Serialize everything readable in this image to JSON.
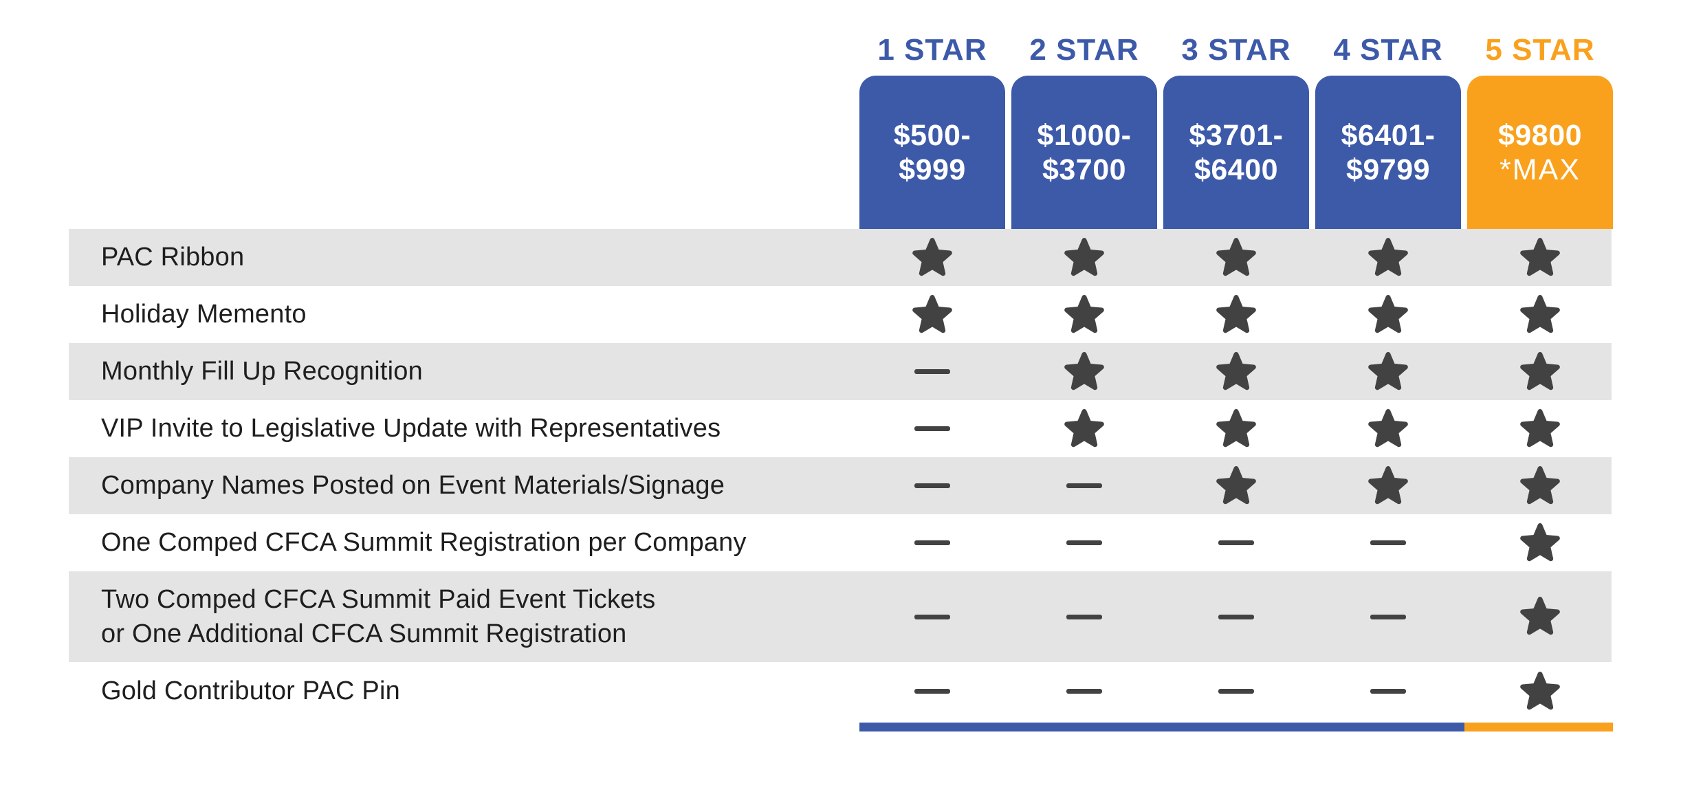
{
  "chart_data": {
    "type": "table",
    "title": "PAC contribution star-tier benefits comparison",
    "columns": [
      {
        "label": "1 STAR",
        "price_line1": "$500-",
        "price_line2": "$999",
        "theme": "blue"
      },
      {
        "label": "2 STAR",
        "price_line1": "$1000-",
        "price_line2": "$3700",
        "theme": "blue"
      },
      {
        "label": "3 STAR",
        "price_line1": "$3701-",
        "price_line2": "$6400",
        "theme": "blue"
      },
      {
        "label": "4 STAR",
        "price_line1": "$6401-",
        "price_line2": "$9799",
        "theme": "blue"
      },
      {
        "label": "5 STAR",
        "price_line1": "$9800",
        "price_line2": "*MAX",
        "theme": "orange"
      }
    ],
    "rows": [
      {
        "label": "PAC Ribbon",
        "cells": [
          "star",
          "star",
          "star",
          "star",
          "star"
        ]
      },
      {
        "label": "Holiday Memento",
        "cells": [
          "star",
          "star",
          "star",
          "star",
          "star"
        ]
      },
      {
        "label": "Monthly Fill Up Recognition",
        "cells": [
          "dash",
          "star",
          "star",
          "star",
          "star"
        ]
      },
      {
        "label": "VIP Invite to Legislative Update with Representatives",
        "cells": [
          "dash",
          "star",
          "star",
          "star",
          "star"
        ]
      },
      {
        "label": "Company Names Posted on Event Materials/Signage",
        "cells": [
          "dash",
          "dash",
          "star",
          "star",
          "star"
        ]
      },
      {
        "label": "One Comped CFCA Summit Registration per Company",
        "cells": [
          "dash",
          "dash",
          "dash",
          "dash",
          "star"
        ]
      },
      {
        "label": "Two Comped CFCA Summit Paid Event Tickets\nor One Additional CFCA Summit Registration",
        "cells": [
          "dash",
          "dash",
          "dash",
          "dash",
          "star"
        ]
      },
      {
        "label": "Gold Contributor PAC Pin",
        "cells": [
          "dash",
          "dash",
          "dash",
          "dash",
          "star"
        ]
      }
    ]
  },
  "colors": {
    "blue": "#3D5AA9",
    "orange": "#F9A11D",
    "row_band_gray": "#E4E4E4",
    "icon_dark_gray": "#424242",
    "label_text": "#1E1E1E",
    "card_text_white": "#FFFFFF"
  },
  "icons": {
    "included": "star-icon",
    "not_included": "dash-icon"
  }
}
